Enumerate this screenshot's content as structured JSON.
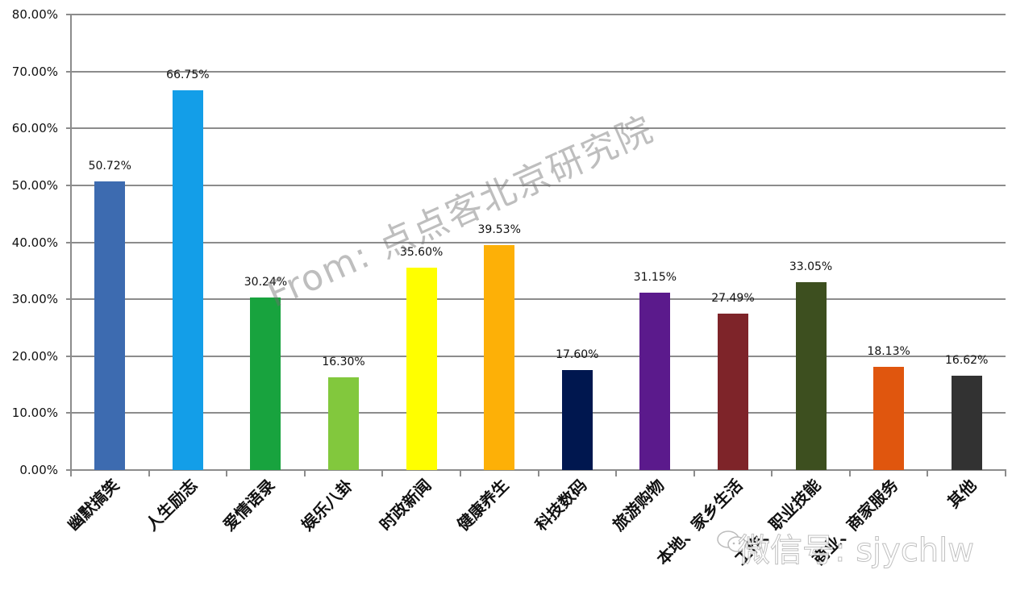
{
  "chart_data": {
    "type": "bar",
    "title": "",
    "xlabel": "",
    "ylabel": "",
    "ylim": [
      0,
      80
    ],
    "yticks": [
      "0.00%",
      "10.00%",
      "20.00%",
      "30.00%",
      "40.00%",
      "50.00%",
      "60.00%",
      "70.00%",
      "80.00%"
    ],
    "grid": true,
    "legend": null,
    "categories": [
      "幽默搞笑",
      "人生励志",
      "爱情语录",
      "娱乐八卦",
      "时政新闻",
      "健康养生",
      "科技数码",
      "旅游购物",
      "本地、家乡生活",
      "工作、职业技能",
      "商业、商家服务",
      "其他"
    ],
    "values": [
      50.72,
      66.75,
      30.24,
      16.3,
      35.6,
      39.53,
      17.6,
      31.15,
      27.49,
      33.05,
      18.13,
      16.62
    ],
    "value_labels": [
      "50.72%",
      "66.75%",
      "30.24%",
      "16.30%",
      "35.60%",
      "39.53%",
      "17.60%",
      "31.15%",
      "27.49%",
      "33.05%",
      "18.13%",
      "16.62%"
    ],
    "bar_colors": [
      "#3d6bb0",
      "#139ee8",
      "#18a33e",
      "#82c83d",
      "#ffff00",
      "#fdb007",
      "#00174f",
      "#5b1a8c",
      "#7e2429",
      "#3d4f1f",
      "#e0560e",
      "#323232"
    ]
  },
  "watermarks": {
    "center": "From: 点点客北京研究院",
    "bottom": "微信号: sjychlw"
  }
}
